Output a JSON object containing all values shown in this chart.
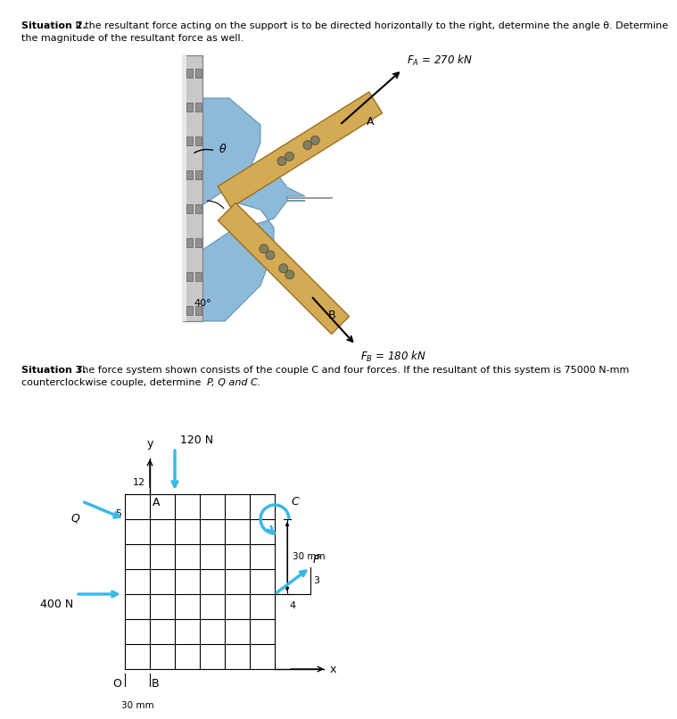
{
  "sit2_bold": "Situation 2.",
  "sit2_normal": " If the resultant force acting on the support is to be directed horizontally to the right, determine the angle θ. Determine",
  "sit2_line2": "the magnitude of the resultant force as well.",
  "sit3_bold": "Situation 3.",
  "sit3_normal": " The force system shown consists of the couple C and four forces. If the resultant of this system is 75000 N-mm",
  "sit3_line2": "counterclockwise couple, determine ",
  "sit3_italic": "P, Q and C.",
  "fa_label": "$F_A$ = 270 kN",
  "fb_label": "$F_B$ = 180 kN",
  "arrow_color": "#3BB8E8",
  "wall_color_light": "#C8C8C8",
  "wall_color_dark": "#A0A0A0",
  "bracket_color": "#7AAED4",
  "bracket_edge": "#5588AA",
  "wood_color": "#D4AA55",
  "wood_edge": "#9A7020",
  "bolt_color": "#808060",
  "text_color": "#000000",
  "bg_color": "#FFFFFF",
  "grid_lw": 0.8,
  "force_lw": 2.5
}
